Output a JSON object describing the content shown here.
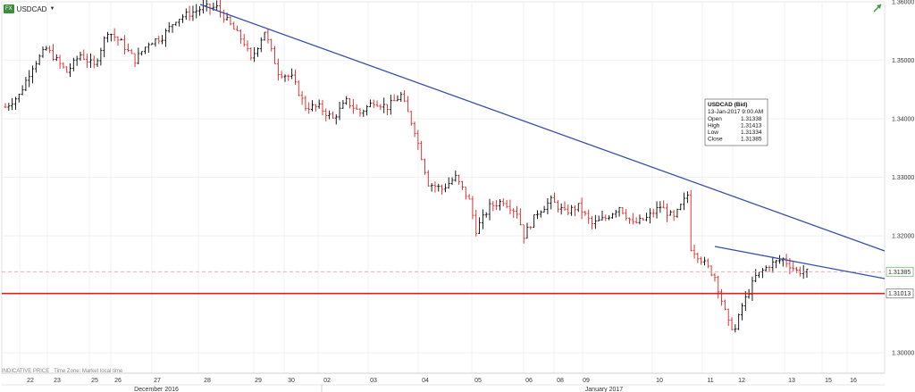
{
  "header": {
    "badge": "FX",
    "symbol": "USDCAD",
    "menu_caret": "▼",
    "expand_icon": "expand-arrow-icon"
  },
  "footnote": {
    "indicative": "INDICATIVE PRICE",
    "timezone": "Time Zone: Market local time"
  },
  "colors": {
    "up": "#000000",
    "down": "#e02020",
    "trendline": "#3a4fa8",
    "support": "#e02020",
    "last_dash": "#f2a0a0",
    "grid": "#e8e8e8"
  },
  "chart_data": {
    "type": "ohlc",
    "symbol": "USDCAD",
    "ylim": [
      1.2965,
      1.36
    ],
    "y_ticks": [
      "1.36000",
      "1.35000",
      "1.34000",
      "1.33000",
      "1.32000",
      "1.30000"
    ],
    "y_tick_values": [
      1.36,
      1.35,
      1.34,
      1.33,
      1.32,
      1.3
    ],
    "x_day_labels": [
      "22",
      "23",
      "25",
      "26",
      "27",
      "28",
      "29",
      "30",
      "02",
      "03",
      "04",
      "05",
      "06",
      "08",
      "09",
      "10",
      "11",
      "12",
      "13",
      "15",
      "16"
    ],
    "x_month_labels": [
      "December 2016",
      "January 2017"
    ],
    "tooltip": {
      "title": "USDCAD (Bid)",
      "date": "13-Jan-2017 9:00 AM",
      "rows": [
        {
          "label": "Open",
          "value": "1.31338"
        },
        {
          "label": "High",
          "value": "1.31413"
        },
        {
          "label": "Low",
          "value": "1.31334"
        },
        {
          "label": "Close",
          "value": "1.31385"
        }
      ]
    },
    "last_price": "1.31385",
    "last_price_value": 1.31385,
    "support_label": "1.31013",
    "support_value": 1.31013,
    "trendlines": [
      {
        "name": "downtrend-major",
        "from": {
          "day": "28",
          "price": 1.3598
        },
        "to": {
          "day": "16+",
          "price": 1.3191
        }
      },
      {
        "name": "downtrend-minor",
        "from": {
          "day": "11",
          "price": 1.3193
        },
        "to": {
          "day": "16+",
          "price": 1.3138
        }
      }
    ],
    "path_anchors": [
      [
        0,
        1.342
      ],
      [
        4,
        1.344
      ],
      [
        8,
        1.349
      ],
      [
        12,
        1.352
      ],
      [
        18,
        1.348
      ],
      [
        22,
        1.351
      ],
      [
        26,
        1.349
      ],
      [
        30,
        1.355
      ],
      [
        34,
        1.353
      ],
      [
        38,
        1.35
      ],
      [
        42,
        1.353
      ],
      [
        46,
        1.354
      ],
      [
        50,
        1.357
      ],
      [
        54,
        1.358
      ],
      [
        58,
        1.359
      ],
      [
        62,
        1.359
      ],
      [
        66,
        1.356
      ],
      [
        70,
        1.353
      ],
      [
        72,
        1.35
      ],
      [
        76,
        1.355
      ],
      [
        80,
        1.348
      ],
      [
        84,
        1.347
      ],
      [
        88,
        1.342
      ],
      [
        92,
        1.342
      ],
      [
        96,
        1.34
      ],
      [
        100,
        1.343
      ],
      [
        104,
        1.341
      ],
      [
        108,
        1.343
      ],
      [
        112,
        1.342
      ],
      [
        116,
        1.344
      ],
      [
        120,
        1.338
      ],
      [
        124,
        1.329
      ],
      [
        128,
        1.328
      ],
      [
        132,
        1.33
      ],
      [
        136,
        1.326
      ],
      [
        138,
        1.321
      ],
      [
        142,
        1.325
      ],
      [
        146,
        1.326
      ],
      [
        150,
        1.324
      ],
      [
        152,
        1.32
      ],
      [
        156,
        1.324
      ],
      [
        160,
        1.326
      ],
      [
        164,
        1.324
      ],
      [
        168,
        1.325
      ],
      [
        172,
        1.322
      ],
      [
        176,
        1.323
      ],
      [
        180,
        1.325
      ],
      [
        184,
        1.322
      ],
      [
        188,
        1.323
      ],
      [
        192,
        1.325
      ],
      [
        196,
        1.323
      ],
      [
        200,
        1.327
      ],
      [
        201,
        1.318
      ],
      [
        204,
        1.316
      ],
      [
        208,
        1.313
      ],
      [
        212,
        1.305
      ],
      [
        214,
        1.304
      ],
      [
        216,
        1.308
      ],
      [
        220,
        1.313
      ],
      [
        224,
        1.315
      ],
      [
        228,
        1.316
      ],
      [
        232,
        1.314
      ],
      [
        235,
        1.3138
      ]
    ]
  }
}
